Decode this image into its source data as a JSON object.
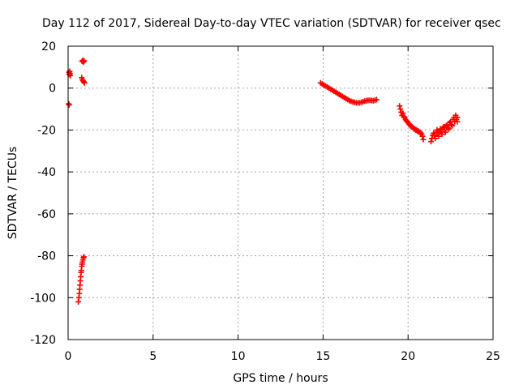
{
  "chart_data": {
    "type": "scatter",
    "title": "Day 112 of 2017, Sidereal Day-to-day VTEC variation (SDTVAR) for receiver qsec",
    "xlabel": "GPS time / hours",
    "ylabel": "SDTVAR / TECUs",
    "xlim": [
      0,
      25
    ],
    "ylim": [
      -120,
      20
    ],
    "xticks": [
      0,
      5,
      10,
      15,
      20,
      25
    ],
    "yticks": [
      -120,
      -100,
      -80,
      -60,
      -40,
      -20,
      0,
      20
    ],
    "grid": true,
    "marker": "+",
    "color": "#ff0000",
    "series": [
      {
        "name": "SDTVAR",
        "points": [
          [
            0.05,
            7.5
          ],
          [
            0.07,
            6.5
          ],
          [
            0.09,
            8.0
          ],
          [
            0.11,
            7.0
          ],
          [
            0.13,
            6.0
          ],
          [
            0.03,
            -7.5
          ],
          [
            0.06,
            -8.0
          ],
          [
            0.82,
            12.8
          ],
          [
            0.86,
            13.2
          ],
          [
            0.9,
            12.5
          ],
          [
            0.94,
            13.0
          ],
          [
            0.8,
            5.0
          ],
          [
            0.84,
            4.0
          ],
          [
            0.88,
            3.5
          ],
          [
            0.92,
            3.0
          ],
          [
            0.96,
            2.5
          ],
          [
            0.6,
            -102.0
          ],
          [
            0.63,
            -100.0
          ],
          [
            0.66,
            -98.0
          ],
          [
            0.68,
            -96.0
          ],
          [
            0.7,
            -94.0
          ],
          [
            0.72,
            -92.0
          ],
          [
            0.74,
            -90.0
          ],
          [
            0.76,
            -88.0
          ],
          [
            0.78,
            -87.0
          ],
          [
            0.8,
            -85.0
          ],
          [
            0.82,
            -84.0
          ],
          [
            0.84,
            -83.0
          ],
          [
            0.87,
            -82.0
          ],
          [
            0.9,
            -81.0
          ],
          [
            0.93,
            -80.5
          ],
          [
            14.85,
            2.5
          ],
          [
            14.95,
            2.0
          ],
          [
            15.05,
            1.5
          ],
          [
            15.15,
            1.0
          ],
          [
            15.25,
            0.5
          ],
          [
            15.35,
            0.0
          ],
          [
            15.45,
            -0.5
          ],
          [
            15.55,
            -1.0
          ],
          [
            15.65,
            -1.5
          ],
          [
            15.75,
            -2.0
          ],
          [
            15.85,
            -2.5
          ],
          [
            15.95,
            -3.0
          ],
          [
            16.05,
            -3.5
          ],
          [
            16.15,
            -4.0
          ],
          [
            16.25,
            -4.5
          ],
          [
            16.35,
            -5.0
          ],
          [
            16.45,
            -5.5
          ],
          [
            16.55,
            -6.0
          ],
          [
            16.65,
            -6.3
          ],
          [
            16.75,
            -6.6
          ],
          [
            16.85,
            -6.8
          ],
          [
            16.95,
            -7.0
          ],
          [
            17.05,
            -7.0
          ],
          [
            17.15,
            -7.0
          ],
          [
            17.25,
            -6.8
          ],
          [
            17.35,
            -6.5
          ],
          [
            17.45,
            -6.2
          ],
          [
            17.55,
            -6.0
          ],
          [
            17.65,
            -5.8
          ],
          [
            17.75,
            -5.8
          ],
          [
            17.85,
            -5.9
          ],
          [
            17.95,
            -6.0
          ],
          [
            18.05,
            -5.8
          ],
          [
            18.15,
            -5.5
          ],
          [
            19.5,
            -8.5
          ],
          [
            19.55,
            -10.0
          ],
          [
            19.6,
            -11.5
          ],
          [
            19.65,
            -13.0
          ],
          [
            19.7,
            -12.0
          ],
          [
            19.75,
            -13.5
          ],
          [
            19.8,
            -14.0
          ],
          [
            19.85,
            -15.0
          ],
          [
            19.9,
            -15.5
          ],
          [
            19.95,
            -16.0
          ],
          [
            20.0,
            -16.5
          ],
          [
            20.05,
            -17.0
          ],
          [
            20.1,
            -17.5
          ],
          [
            20.15,
            -18.0
          ],
          [
            20.2,
            -18.5
          ],
          [
            20.25,
            -18.5
          ],
          [
            20.3,
            -19.0
          ],
          [
            20.35,
            -19.5
          ],
          [
            20.4,
            -19.5
          ],
          [
            20.45,
            -20.0
          ],
          [
            20.5,
            -20.0
          ],
          [
            20.55,
            -20.5
          ],
          [
            20.6,
            -20.5
          ],
          [
            20.65,
            -21.0
          ],
          [
            20.7,
            -21.0
          ],
          [
            20.75,
            -21.5
          ],
          [
            20.8,
            -22.0
          ],
          [
            20.85,
            -23.0
          ],
          [
            20.9,
            -24.5
          ],
          [
            21.35,
            -25.5
          ],
          [
            21.4,
            -24.0
          ],
          [
            21.45,
            -22.5
          ],
          [
            21.5,
            -21.5
          ],
          [
            21.55,
            -22.5
          ],
          [
            21.6,
            -24.0
          ],
          [
            21.65,
            -21.0
          ],
          [
            21.7,
            -20.0
          ],
          [
            21.75,
            -21.5
          ],
          [
            21.8,
            -23.0
          ],
          [
            21.85,
            -20.5
          ],
          [
            21.9,
            -19.5
          ],
          [
            21.95,
            -21.0
          ],
          [
            22.0,
            -22.0
          ],
          [
            22.05,
            -19.0
          ],
          [
            22.1,
            -18.5
          ],
          [
            22.15,
            -20.0
          ],
          [
            22.2,
            -21.0
          ],
          [
            22.25,
            -18.0
          ],
          [
            22.3,
            -17.5
          ],
          [
            22.35,
            -19.0
          ],
          [
            22.4,
            -19.5
          ],
          [
            22.45,
            -16.5
          ],
          [
            22.5,
            -16.0
          ],
          [
            22.55,
            -17.5
          ],
          [
            22.6,
            -18.0
          ],
          [
            22.65,
            -15.0
          ],
          [
            22.7,
            -14.0
          ],
          [
            22.75,
            -16.0
          ],
          [
            22.8,
            -13.0
          ],
          [
            22.85,
            -15.0
          ],
          [
            22.9,
            -14.0
          ],
          [
            22.9,
            -16.0
          ]
        ]
      }
    ]
  }
}
